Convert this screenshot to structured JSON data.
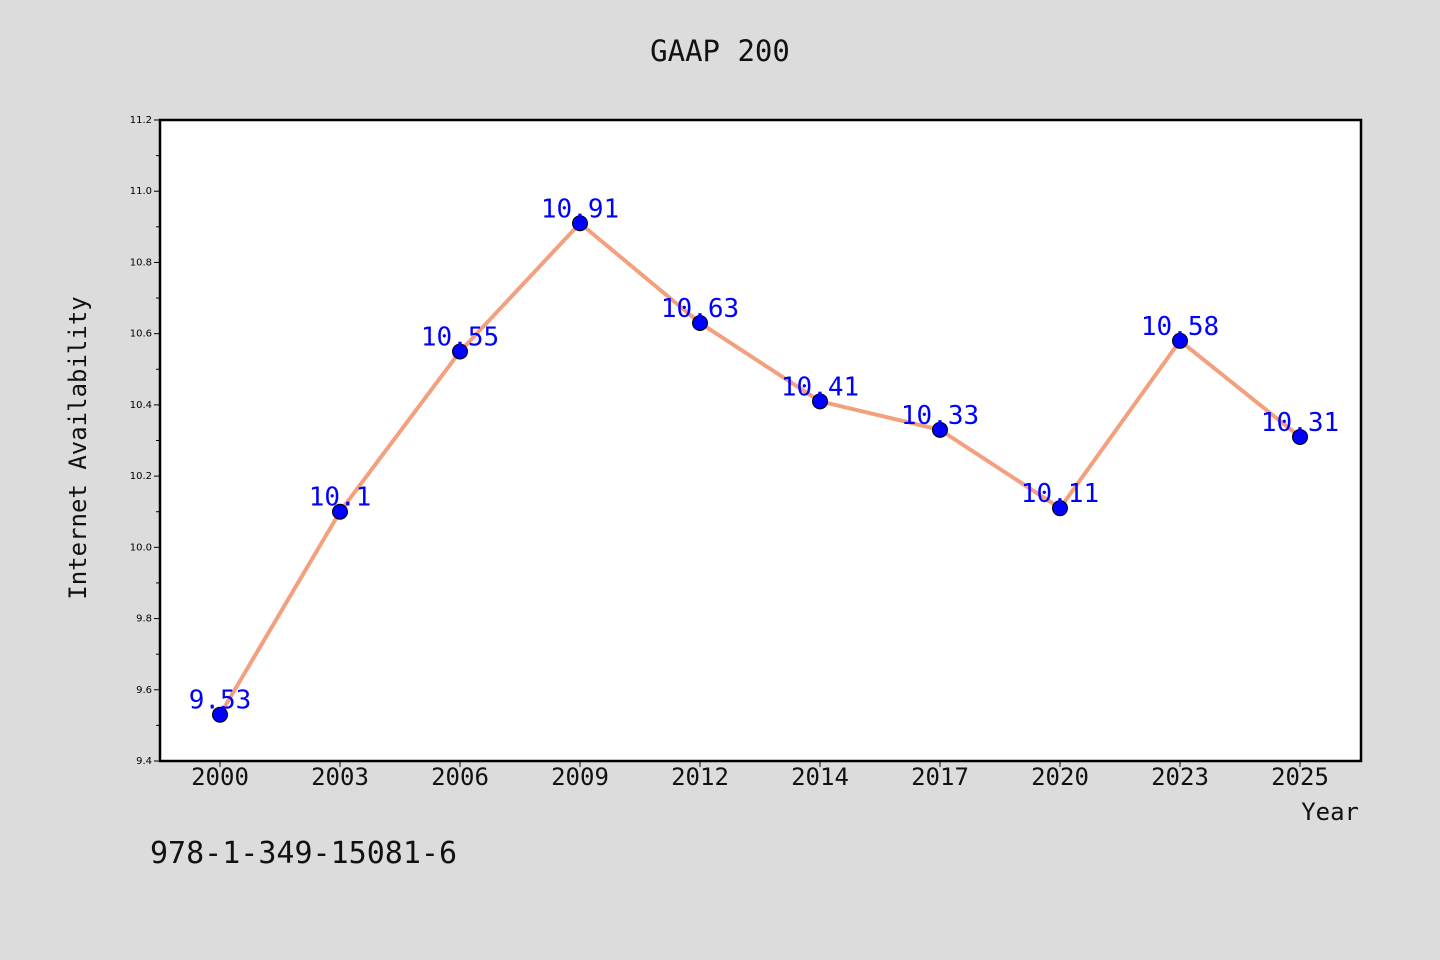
{
  "chart_data": {
    "type": "line",
    "title": "GAAP 200",
    "xlabel": "Year",
    "ylabel": "Internet Availability",
    "categories": [
      "2000",
      "2003",
      "2006",
      "2009",
      "2012",
      "2014",
      "2017",
      "2020",
      "2023",
      "2025"
    ],
    "values": [
      9.53,
      10.1,
      10.55,
      10.91,
      10.63,
      10.41,
      10.33,
      10.11,
      10.58,
      10.31
    ],
    "data_labels": [
      "9.53",
      "10.1",
      "10.55",
      "10.91",
      "10.63",
      "10.41",
      "10.33",
      "10.11",
      "10.58",
      "10.31"
    ],
    "ylim": [
      9.4,
      11.2
    ],
    "yticks": [
      "9.4",
      "9.6",
      "9.8",
      "10.0",
      "10.2",
      "10.4",
      "10.6",
      "10.8",
      "11.0",
      "11.2"
    ],
    "grid": false,
    "line_color": "#f4a07e",
    "marker_color": "#0000ff",
    "label_color": "#0000ff",
    "annotation": "978-1-349-15081-6"
  }
}
